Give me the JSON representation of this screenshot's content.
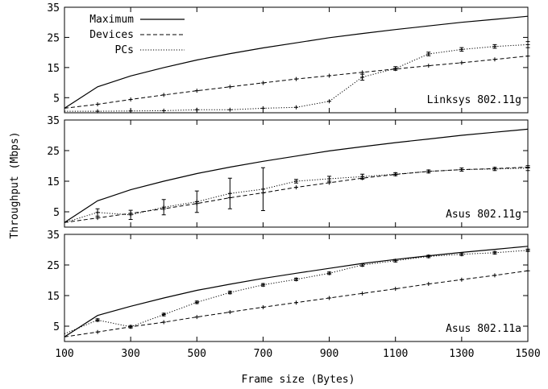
{
  "chart_data": {
    "type": "line",
    "xlabel": "Frame size (Bytes)",
    "ylabel": "Throughput (Mbps)",
    "xlim": [
      100,
      1500
    ],
    "ylim": [
      0,
      35
    ],
    "x_ticks": [
      "100",
      "300",
      "500",
      "700",
      "900",
      "1100",
      "1300",
      "1500"
    ],
    "y_ticks": [
      "5",
      "15",
      "25",
      "35"
    ],
    "legend": {
      "placement": "top-left of first panel",
      "entries": [
        {
          "label": "Maximum",
          "style": "solid"
        },
        {
          "label": "Devices",
          "style": "dashed"
        },
        {
          "label": "PCs",
          "style": "dotted"
        }
      ]
    },
    "panels": [
      {
        "title": "Linksys 802.11g",
        "series": [
          {
            "name": "Maximum",
            "style": "solid",
            "x": [
              100,
              200,
              300,
              400,
              500,
              600,
              700,
              800,
              900,
              1000,
              1100,
              1200,
              1300,
              1400,
              1500
            ],
            "y": [
              1.5,
              8.6,
              12.2,
              15.0,
              17.5,
              19.6,
              21.5,
              23.2,
              24.9,
              26.3,
              27.6,
              28.8,
              30.0,
              31.0,
              32.0
            ]
          },
          {
            "name": "Devices",
            "style": "dashed",
            "x": [
              100,
              200,
              300,
              400,
              500,
              600,
              700,
              800,
              900,
              1000,
              1100,
              1200,
              1300,
              1400,
              1500
            ],
            "y": [
              1.5,
              2.8,
              4.4,
              5.9,
              7.3,
              8.6,
              9.9,
              11.2,
              12.3,
              13.4,
              14.5,
              15.6,
              16.6,
              17.7,
              18.8
            ]
          },
          {
            "name": "PCs",
            "style": "dotted",
            "x": [
              100,
              200,
              300,
              400,
              500,
              600,
              700,
              800,
              900,
              1000,
              1100,
              1200,
              1300,
              1400,
              1500
            ],
            "y": [
              0.5,
              0.5,
              0.6,
              0.7,
              1.0,
              1.0,
              1.5,
              1.8,
              3.8,
              11.8,
              14.7,
              19.5,
              21.0,
              22.0,
              22.6
            ],
            "err": [
              0,
              0,
              0,
              0,
              0,
              0,
              0,
              0,
              0,
              1.0,
              0.6,
              0.6,
              0.6,
              0.6,
              1.0
            ]
          }
        ]
      },
      {
        "title": "Asus 802.11g",
        "series": [
          {
            "name": "Maximum",
            "style": "solid",
            "x": [
              100,
              200,
              300,
              400,
              500,
              600,
              700,
              800,
              900,
              1000,
              1100,
              1200,
              1300,
              1400,
              1500
            ],
            "y": [
              1.5,
              8.6,
              12.2,
              15.0,
              17.5,
              19.6,
              21.5,
              23.2,
              24.9,
              26.3,
              27.6,
              28.8,
              30.0,
              31.0,
              32.0
            ]
          },
          {
            "name": "Devices",
            "style": "dashed",
            "x": [
              100,
              200,
              300,
              400,
              500,
              600,
              700,
              800,
              900,
              1000,
              1100,
              1200,
              1300,
              1400,
              1500
            ],
            "y": [
              1.5,
              3.0,
              4.5,
              6.0,
              7.7,
              9.6,
              11.2,
              13.0,
              14.5,
              16.0,
              17.2,
              18.2,
              18.8,
              19.1,
              19.6
            ]
          },
          {
            "name": "PCs",
            "style": "dotted",
            "x": [
              100,
              200,
              300,
              400,
              500,
              600,
              700,
              800,
              900,
              1000,
              1100,
              1200,
              1300,
              1400,
              1500
            ],
            "y": [
              1.5,
              4.8,
              4.0,
              6.5,
              8.3,
              11.0,
              12.4,
              15.0,
              15.8,
              16.5,
              17.3,
              18.2,
              18.8,
              19.0,
              19.3
            ],
            "err": [
              0,
              1.2,
              1.5,
              2.5,
              3.5,
              5.0,
              7.0,
              0.6,
              0.8,
              0.8,
              0.5,
              0.5,
              0.5,
              0.5,
              0.8
            ]
          }
        ]
      },
      {
        "title": "Asus 802.11a",
        "series": [
          {
            "name": "Maximum",
            "style": "solid",
            "x": [
              100,
              200,
              300,
              400,
              500,
              600,
              700,
              800,
              900,
              1000,
              1100,
              1200,
              1300,
              1400,
              1500
            ],
            "y": [
              1.5,
              8.5,
              11.5,
              14.2,
              16.7,
              18.7,
              20.6,
              22.3,
              23.9,
              25.5,
              26.8,
              28.0,
              29.1,
              30.1,
              31.1
            ]
          },
          {
            "name": "Devices",
            "style": "dashed",
            "x": [
              100,
              200,
              300,
              400,
              500,
              600,
              700,
              800,
              900,
              1000,
              1100,
              1200,
              1300,
              1400,
              1500
            ],
            "y": [
              1.5,
              3.1,
              4.8,
              6.3,
              8.0,
              9.6,
              11.2,
              12.7,
              14.2,
              15.7,
              17.2,
              18.8,
              20.2,
              21.6,
              23.1
            ]
          },
          {
            "name": "PCs",
            "style": "dotted",
            "x": [
              100,
              200,
              300,
              400,
              500,
              600,
              700,
              800,
              900,
              1000,
              1100,
              1200,
              1300,
              1400,
              1500
            ],
            "y": [
              2.5,
              7.0,
              4.8,
              8.8,
              12.8,
              16.0,
              18.5,
              20.3,
              22.3,
              25.0,
              26.4,
              27.8,
              28.5,
              29.0,
              29.8
            ],
            "err": [
              0,
              0.4,
              0.4,
              0.4,
              0.4,
              0.4,
              0.4,
              0.4,
              0.4,
              0.4,
              0.4,
              0.4,
              0.4,
              0.4,
              0.4
            ]
          }
        ]
      }
    ]
  }
}
